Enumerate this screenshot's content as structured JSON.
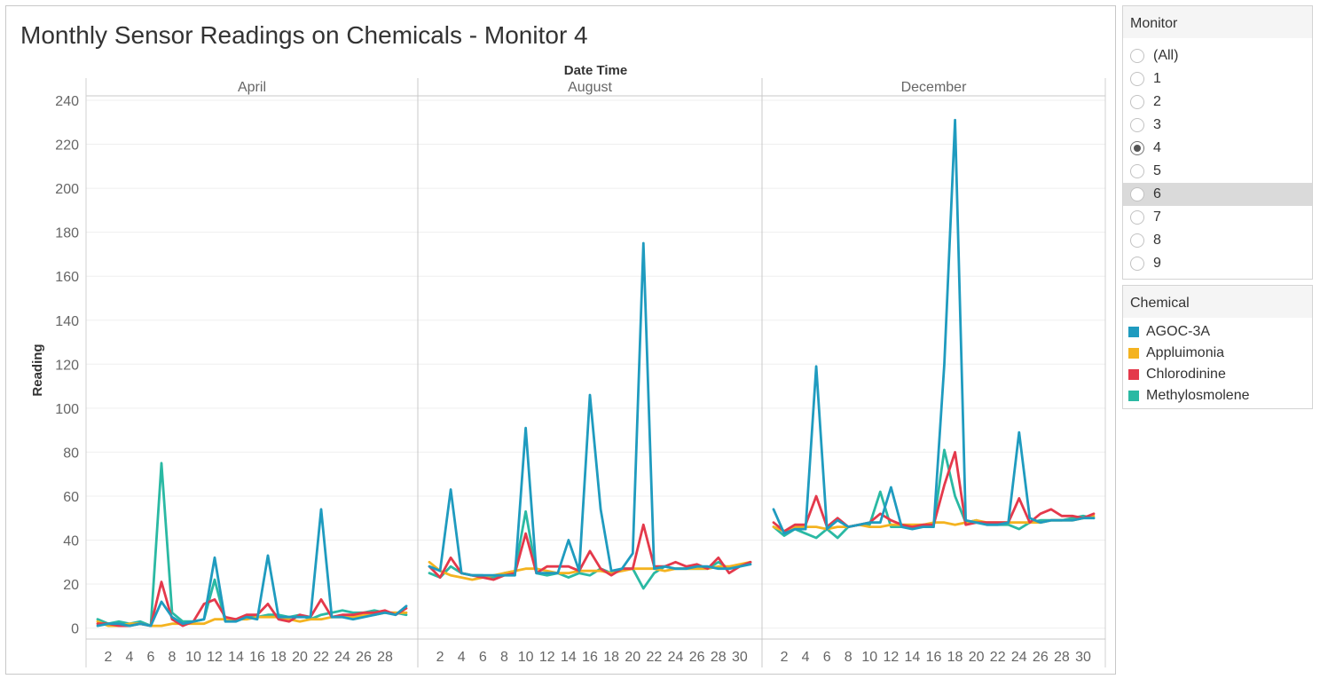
{
  "title": "Monthly Sensor Readings on Chemicals - Monitor 4",
  "monitor_filter": {
    "title": "Monitor",
    "options": [
      "(All)",
      "1",
      "2",
      "3",
      "4",
      "5",
      "6",
      "7",
      "8",
      "9"
    ],
    "selected": "4",
    "hovered": "6"
  },
  "chemical_legend": {
    "title": "Chemical",
    "items": [
      {
        "label": "AGOC-3A",
        "color": "#1f9bbf"
      },
      {
        "label": "Appluimonia",
        "color": "#f4b320"
      },
      {
        "label": "Chlorodinine",
        "color": "#e4394b"
      },
      {
        "label": "Methylosmolene",
        "color": "#2ab9a3"
      }
    ]
  },
  "chart_data": {
    "type": "line",
    "title": "Monthly Sensor Readings on Chemicals - Monitor 4",
    "column_header": "Date Time",
    "ylabel": "Reading",
    "ylim": [
      -5,
      240
    ],
    "yticks": [
      0,
      20,
      40,
      60,
      80,
      100,
      120,
      140,
      160,
      180,
      200,
      220,
      240
    ],
    "grid": true,
    "legend_position": "right",
    "panels": [
      {
        "month": "April",
        "x": [
          1,
          2,
          3,
          4,
          5,
          6,
          7,
          8,
          9,
          10,
          11,
          12,
          13,
          14,
          15,
          16,
          17,
          18,
          19,
          20,
          21,
          22,
          23,
          24,
          25,
          26,
          27,
          28,
          29,
          30
        ],
        "xticks": [
          2,
          4,
          6,
          8,
          10,
          12,
          14,
          16,
          18,
          20,
          22,
          24,
          26,
          28
        ],
        "series": [
          {
            "name": "Methylosmolene",
            "values": [
              4,
              2,
              3,
              2,
              3,
              1,
              75,
              7,
              3,
              3,
              4,
              22,
              3,
              4,
              5,
              5,
              6,
              6,
              5,
              6,
              4,
              6,
              7,
              8,
              7,
              7,
              8,
              7,
              7,
              6
            ]
          },
          {
            "name": "Appluimonia",
            "values": [
              3,
              1,
              1,
              2,
              2,
              1,
              1,
              2,
              2,
              2,
              2,
              4,
              4,
              4,
              4,
              5,
              5,
              5,
              4,
              3,
              4,
              4,
              5,
              5,
              5,
              6,
              6,
              7,
              7,
              7
            ]
          },
          {
            "name": "Chlorodinine",
            "values": [
              2,
              2,
              1,
              1,
              2,
              1,
              21,
              4,
              1,
              3,
              11,
              13,
              5,
              4,
              6,
              6,
              11,
              4,
              3,
              6,
              5,
              13,
              5,
              6,
              6,
              7,
              7,
              8,
              6,
              9
            ]
          },
          {
            "name": "AGOC-3A",
            "values": [
              1,
              2,
              2,
              1,
              2,
              1,
              12,
              5,
              2,
              3,
              4,
              32,
              3,
              3,
              5,
              4,
              33,
              5,
              5,
              5,
              5,
              54,
              5,
              5,
              4,
              5,
              6,
              7,
              6,
              10
            ]
          }
        ]
      },
      {
        "month": "August",
        "x": [
          1,
          2,
          3,
          4,
          5,
          6,
          7,
          8,
          9,
          10,
          11,
          12,
          13,
          14,
          15,
          16,
          17,
          18,
          19,
          20,
          21,
          22,
          23,
          24,
          25,
          26,
          27,
          28,
          29,
          30,
          31
        ],
        "xticks": [
          2,
          4,
          6,
          8,
          10,
          12,
          14,
          16,
          18,
          20,
          22,
          24,
          26,
          28,
          30
        ],
        "series": [
          {
            "name": "Methylosmolene",
            "values": [
              25,
              23,
              28,
              25,
              24,
              24,
              23,
              25,
              26,
              53,
              25,
              24,
              25,
              23,
              25,
              24,
              27,
              25,
              27,
              27,
              18,
              25,
              28,
              27,
              27,
              27,
              27,
              30,
              27,
              28,
              30
            ]
          },
          {
            "name": "Appluimonia",
            "values": [
              30,
              26,
              24,
              23,
              22,
              23,
              24,
              25,
              26,
              27,
              27,
              26,
              25,
              25,
              26,
              26,
              26,
              25,
              26,
              27,
              27,
              27,
              26,
              27,
              27,
              27,
              27,
              28,
              28,
              29,
              30
            ]
          },
          {
            "name": "Chlorodinine",
            "values": [
              28,
              23,
              32,
              25,
              24,
              23,
              22,
              24,
              25,
              43,
              25,
              28,
              28,
              28,
              26,
              35,
              27,
              24,
              27,
              27,
              47,
              28,
              28,
              30,
              28,
              29,
              27,
              32,
              25,
              28,
              30
            ]
          },
          {
            "name": "AGOC-3A",
            "values": [
              28,
              26,
              63,
              25,
              24,
              24,
              24,
              24,
              24,
              91,
              25,
              25,
              25,
              40,
              26,
              106,
              54,
              26,
              27,
              34,
              175,
              27,
              28,
              27,
              27,
              28,
              28,
              27,
              27,
              28,
              29
            ]
          }
        ]
      },
      {
        "month": "December",
        "x": [
          1,
          2,
          3,
          4,
          5,
          6,
          7,
          8,
          9,
          10,
          11,
          12,
          13,
          14,
          15,
          16,
          17,
          18,
          19,
          20,
          21,
          22,
          23,
          24,
          25,
          26,
          27,
          28,
          29,
          30,
          31
        ],
        "xticks": [
          2,
          4,
          6,
          8,
          10,
          12,
          14,
          16,
          18,
          20,
          22,
          24,
          26,
          28,
          30
        ],
        "series": [
          {
            "name": "Methylosmolene",
            "values": [
              46,
              42,
              45,
              43,
              41,
              45,
              41,
              46,
              47,
              47,
              62,
              46,
              46,
              46,
              46,
              47,
              81,
              60,
              48,
              49,
              47,
              47,
              47,
              45,
              48,
              49,
              49,
              49,
              50,
              51,
              50
            ]
          },
          {
            "name": "Appluimonia",
            "values": [
              46,
              44,
              46,
              46,
              46,
              45,
              46,
              46,
              47,
              46,
              46,
              47,
              47,
              47,
              47,
              48,
              48,
              47,
              48,
              49,
              48,
              48,
              48,
              48,
              48,
              48,
              49,
              49,
              49,
              50,
              51
            ]
          },
          {
            "name": "Chlorodinine",
            "values": [
              48,
              44,
              47,
              47,
              60,
              46,
              50,
              46,
              47,
              48,
              52,
              49,
              47,
              46,
              47,
              47,
              65,
              80,
              47,
              48,
              48,
              48,
              48,
              59,
              48,
              52,
              54,
              51,
              51,
              50,
              52
            ]
          },
          {
            "name": "AGOC-3A",
            "values": [
              54,
              43,
              45,
              45,
              119,
              45,
              49,
              46,
              47,
              48,
              48,
              64,
              46,
              45,
              46,
              46,
              120,
              231,
              49,
              48,
              47,
              47,
              48,
              89,
              50,
              48,
              49,
              49,
              49,
              50,
              50
            ]
          }
        ]
      }
    ]
  }
}
